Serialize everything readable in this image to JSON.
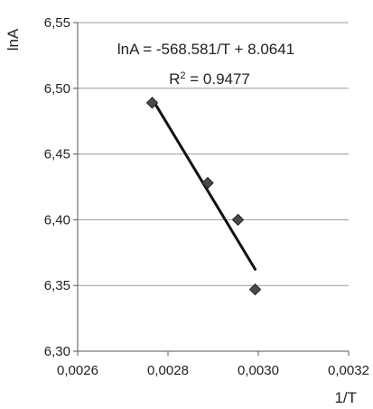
{
  "chart_data": {
    "type": "scatter",
    "title": "",
    "xlabel": "1/T",
    "ylabel": "lnA",
    "xlim": [
      0.0026,
      0.0032
    ],
    "ylim": [
      6.3,
      6.55
    ],
    "x_ticks": [
      0.0026,
      0.0028,
      0.003,
      0.0032
    ],
    "x_tick_labels": [
      "0,0026",
      "0,0028",
      "0,0030",
      "0,0032"
    ],
    "y_ticks": [
      6.3,
      6.35,
      6.4,
      6.45,
      6.5,
      6.55
    ],
    "y_tick_labels": [
      "6,30",
      "6,35",
      "6,40",
      "6,45",
      "6,50",
      "6,55"
    ],
    "grid": "horizontal",
    "series": [
      {
        "marker": "diamond",
        "color": "#4a4a4a",
        "points": [
          {
            "x": 0.002765,
            "y": 6.489
          },
          {
            "x": 0.002888,
            "y": 6.428
          },
          {
            "x": 0.002955,
            "y": 6.4
          },
          {
            "x": 0.002993,
            "y": 6.347
          }
        ]
      }
    ],
    "trendline": {
      "type": "linear",
      "slope": -568.581,
      "intercept": 8.0641,
      "x_range": [
        0.002765,
        0.002993
      ],
      "color": "#111111",
      "equation_label": "lnA = -568.581/T + 8.0641",
      "r2_prefix": "R",
      "r2_exponent": "2",
      "r2_value_text": " = 0.9477"
    }
  }
}
